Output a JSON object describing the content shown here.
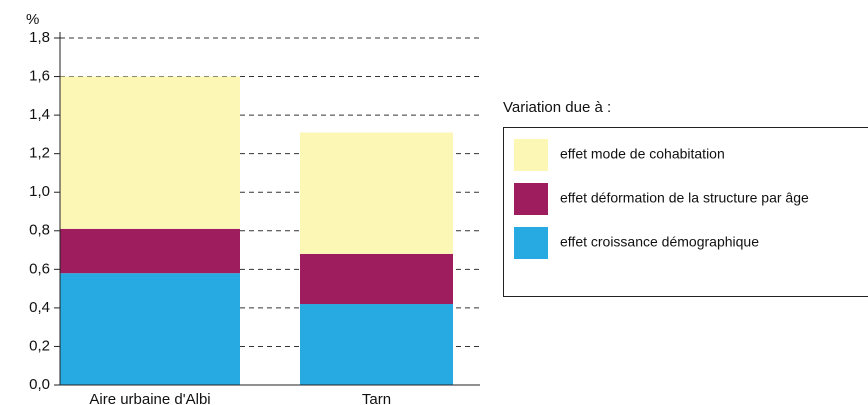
{
  "chart_data": {
    "type": "stacked_bar",
    "y_unit": "%",
    "categories": [
      "Aire urbaine d'Albi",
      "Tarn"
    ],
    "series": [
      {
        "name": "effet croissance démographique",
        "color": "#27a9e1",
        "values": [
          0.58,
          0.42
        ]
      },
      {
        "name": "effet déformation de la structure par âge",
        "color": "#9e1d5e",
        "values": [
          0.23,
          0.26
        ]
      },
      {
        "name": "effet mode de cohabitation",
        "color": "#fdf7b6",
        "values": [
          0.79,
          0.63
        ]
      }
    ],
    "legend_title": "Variation due à :",
    "ylim": [
      0,
      1.8
    ],
    "yticks": [
      {
        "value": 0,
        "label": "0,0"
      },
      {
        "value": 0.2,
        "label": "0,2"
      },
      {
        "value": 0.4,
        "label": "0,4"
      },
      {
        "value": 0.6,
        "label": "0,6"
      },
      {
        "value": 0.8,
        "label": "0,8"
      },
      {
        "value": 1.0,
        "label": "1,0"
      },
      {
        "value": 1.2,
        "label": "1,2"
      },
      {
        "value": 1.4,
        "label": "1,4"
      },
      {
        "value": 1.6,
        "label": "1,6"
      },
      {
        "value": 1.8,
        "label": "1,8"
      }
    ],
    "grid": true
  }
}
